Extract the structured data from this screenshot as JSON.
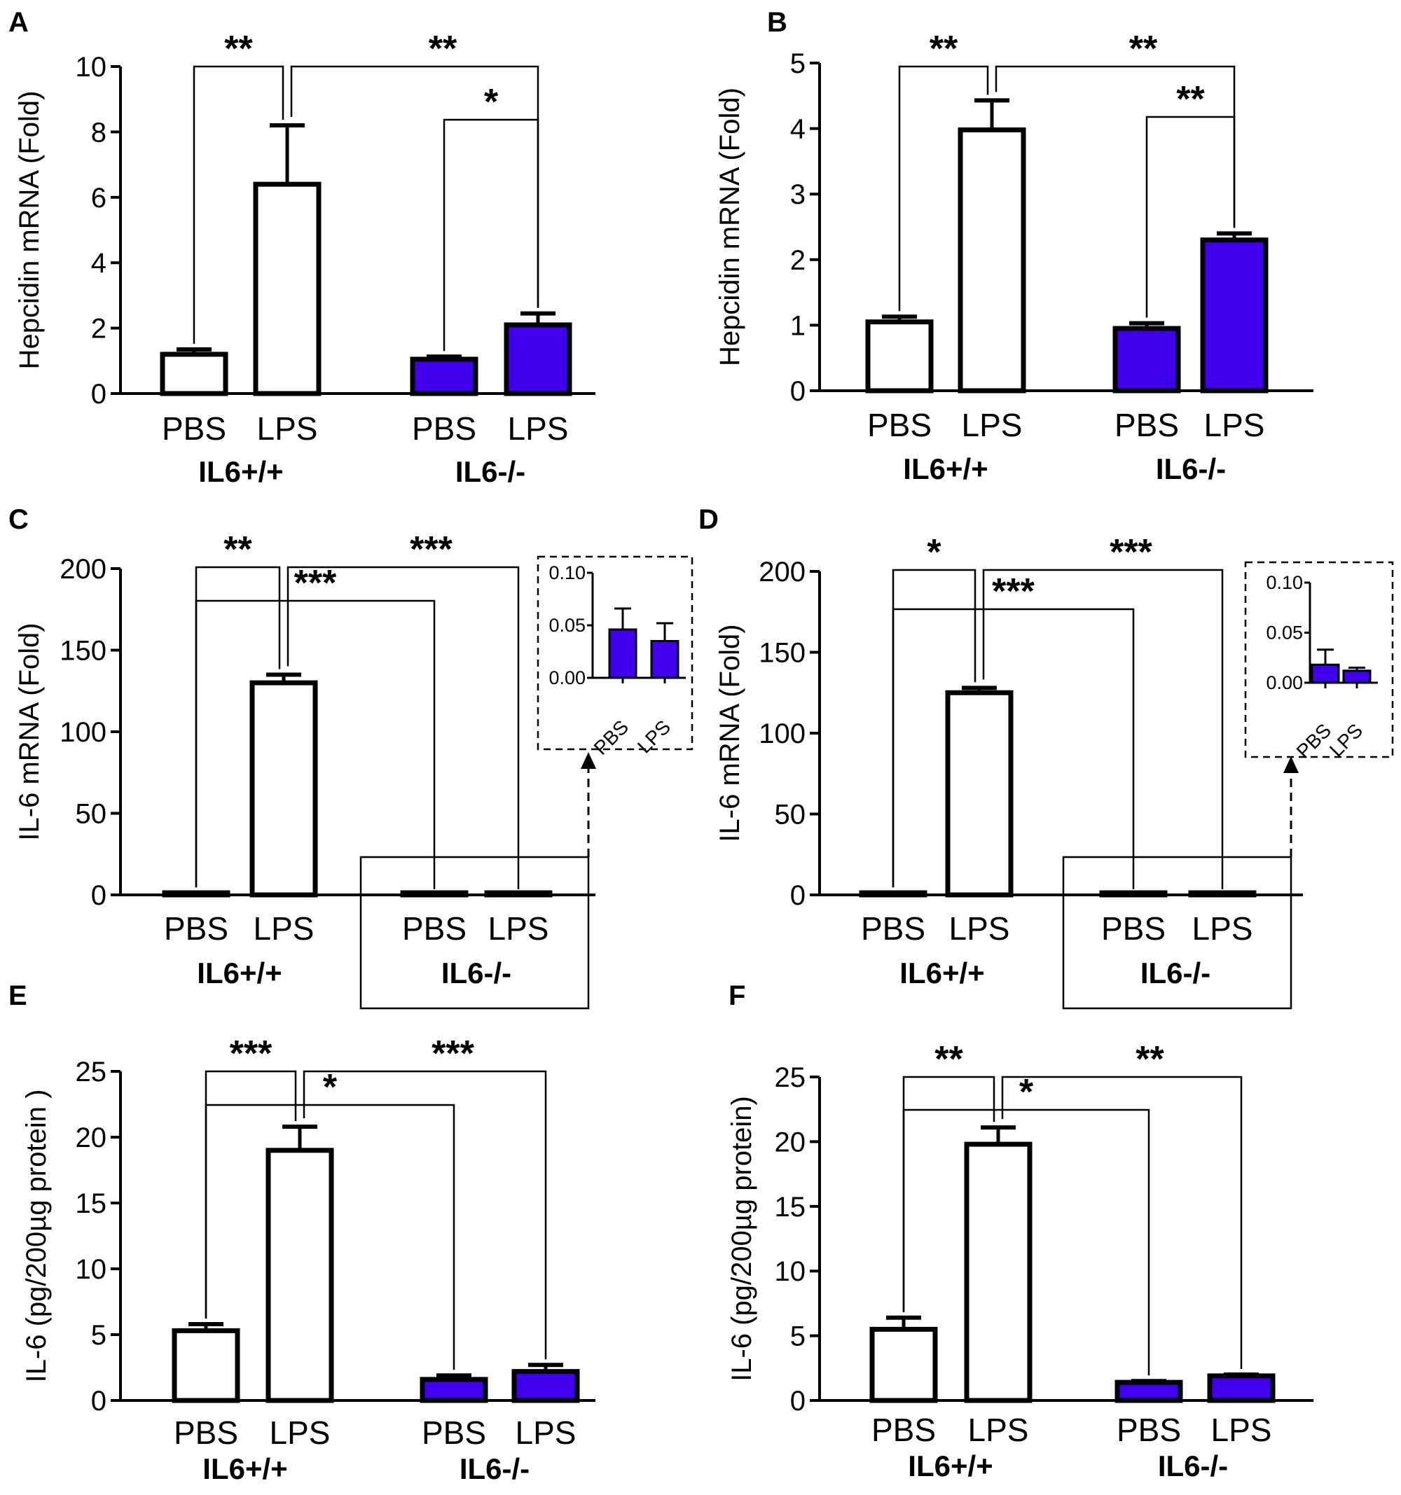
{
  "colors": {
    "fill_wt": "#ffffff",
    "fill_ko": "#4000ee",
    "stroke": "#000000"
  },
  "chart_data": [
    {
      "panel": "A",
      "type": "bar",
      "ylabel": "Hepcidin mRNA (Fold)",
      "ylim": [
        0,
        10
      ],
      "yticks": [
        "0",
        "2",
        "4",
        "6",
        "8",
        "10"
      ],
      "categories": [
        "PBS",
        "LPS",
        "PBS",
        "LPS"
      ],
      "groups": [
        "IL6+/+",
        "IL6-/-"
      ],
      "values": [
        1.2,
        6.4,
        1.05,
        2.1
      ],
      "errors": [
        0.15,
        1.8,
        0.08,
        0.35
      ],
      "significance": [
        {
          "from": 0,
          "to": 1,
          "label": "**"
        },
        {
          "from": 1,
          "to": 3,
          "label": "**"
        },
        {
          "from": 2,
          "to": 3,
          "label": "*"
        }
      ]
    },
    {
      "panel": "B",
      "type": "bar",
      "ylabel": "Hepcidin mRNA (Fold)",
      "ylim": [
        0,
        5
      ],
      "yticks": [
        "0",
        "1",
        "2",
        "3",
        "4",
        "5"
      ],
      "categories": [
        "PBS",
        "LPS",
        "PBS",
        "LPS"
      ],
      "groups": [
        "IL6+/+",
        "IL6-/-"
      ],
      "values": [
        1.05,
        3.98,
        0.95,
        2.3
      ],
      "errors": [
        0.08,
        0.45,
        0.08,
        0.1
      ],
      "significance": [
        {
          "from": 0,
          "to": 1,
          "label": "**"
        },
        {
          "from": 1,
          "to": 3,
          "label": "**"
        },
        {
          "from": 2,
          "to": 3,
          "label": "**"
        }
      ]
    },
    {
      "panel": "C",
      "type": "bar",
      "ylabel": "IL-6 mRNA (Fold)",
      "ylim": [
        0,
        200
      ],
      "yticks": [
        "0",
        "50",
        "100",
        "150",
        "200"
      ],
      "categories": [
        "PBS",
        "LPS",
        "PBS",
        "LPS"
      ],
      "groups": [
        "IL6+/+",
        "IL6-/-"
      ],
      "values": [
        1,
        130,
        0.046,
        0.035
      ],
      "errors": [
        0.2,
        5,
        0.02,
        0.017
      ],
      "significance": [
        {
          "from": 0,
          "to": 1,
          "label": "**"
        },
        {
          "from": 1,
          "to": 3,
          "label": "***"
        },
        {
          "from": 0,
          "to": 2,
          "label": "***"
        }
      ],
      "inset": {
        "ylim": [
          0,
          0.1
        ],
        "yticks": [
          "0.00",
          "0.05",
          "0.10"
        ],
        "categories": [
          "PBS",
          "LPS"
        ],
        "values": [
          0.046,
          0.035
        ],
        "errors": [
          0.02,
          0.017
        ]
      }
    },
    {
      "panel": "D",
      "type": "bar",
      "ylabel": "IL-6 mRNA (Fold)",
      "ylim": [
        0,
        200
      ],
      "yticks": [
        "0",
        "50",
        "100",
        "150",
        "200"
      ],
      "categories": [
        "PBS",
        "LPS",
        "PBS",
        "LPS"
      ],
      "groups": [
        "IL6+/+",
        "IL6-/-"
      ],
      "values": [
        1,
        125,
        0.018,
        0.012
      ],
      "errors": [
        0.2,
        3,
        0.015,
        0.003
      ],
      "significance": [
        {
          "from": 0,
          "to": 1,
          "label": "*"
        },
        {
          "from": 1,
          "to": 3,
          "label": "***"
        },
        {
          "from": 0,
          "to": 2,
          "label": "***"
        }
      ],
      "inset": {
        "ylim": [
          0,
          0.1
        ],
        "yticks": [
          "0.00",
          "0.05",
          "0.10"
        ],
        "categories": [
          "PBS",
          "LPS"
        ],
        "values": [
          0.018,
          0.012
        ],
        "errors": [
          0.015,
          0.003
        ]
      }
    },
    {
      "panel": "E",
      "type": "bar",
      "ylabel": "IL-6 (pg/200µg protein )",
      "ylim": [
        0,
        25
      ],
      "yticks": [
        "0",
        "5",
        "10",
        "15",
        "20",
        "25"
      ],
      "categories": [
        "PBS",
        "LPS",
        "PBS",
        "LPS"
      ],
      "groups": [
        "IL6+/+",
        "IL6-/-"
      ],
      "values": [
        5.3,
        19,
        1.6,
        2.2
      ],
      "errors": [
        0.5,
        1.8,
        0.3,
        0.5
      ],
      "significance": [
        {
          "from": 0,
          "to": 1,
          "label": "***"
        },
        {
          "from": 1,
          "to": 3,
          "label": "***"
        },
        {
          "from": 0,
          "to": 2,
          "label": "*"
        }
      ]
    },
    {
      "panel": "F",
      "type": "bar",
      "ylabel": "IL-6 (pg/200µg protein)",
      "ylim": [
        0,
        25
      ],
      "yticks": [
        "0",
        "5",
        "10",
        "15",
        "20",
        "25"
      ],
      "categories": [
        "PBS",
        "LPS",
        "PBS",
        "LPS"
      ],
      "groups": [
        "IL6+/+",
        "IL6-/-"
      ],
      "values": [
        5.5,
        19.8,
        1.4,
        1.9
      ],
      "errors": [
        0.9,
        1.3,
        0.1,
        0.1
      ],
      "significance": [
        {
          "from": 0,
          "to": 1,
          "label": "**"
        },
        {
          "from": 1,
          "to": 3,
          "label": "**"
        },
        {
          "from": 0,
          "to": 2,
          "label": "*"
        }
      ]
    }
  ]
}
